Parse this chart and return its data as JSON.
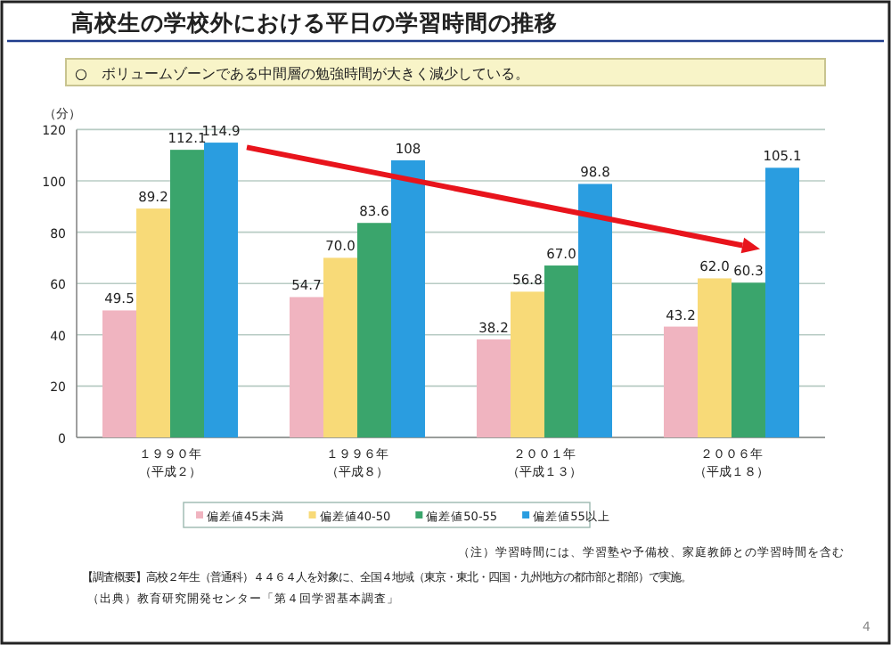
{
  "chart_data": {
    "type": "bar",
    "title": "高校生の学校外における平日の学習時間の推移",
    "subtitle": "○　ボリュームゾーンである中間層の勉強時間が大きく減少している。",
    "ylabel": "（分）",
    "categories": [
      "１９９０年（平成２）",
      "１９９６年（平成８）",
      "２００１年（平成１３）",
      "２００６年（平成１８）"
    ],
    "series": [
      {
        "name": "偏差値45未満",
        "color": "#f0b4c0",
        "values": [
          49.5,
          54.7,
          38.2,
          43.2
        ],
        "value_labels": [
          "49.5",
          "54.7",
          "38.2",
          "43.2"
        ]
      },
      {
        "name": "偏差値40-50",
        "color": "#f8da78",
        "values": [
          89.2,
          70.0,
          56.8,
          62.0
        ],
        "value_labels": [
          "89.2",
          "70.0",
          "56.8",
          "62.0"
        ]
      },
      {
        "name": "偏差値50-55",
        "color": "#3aa56c",
        "values": [
          112.1,
          83.6,
          67.0,
          60.3
        ],
        "value_labels": [
          "112.1",
          "83.6",
          "67.0",
          "60.3"
        ]
      },
      {
        "name": "偏差値55以上",
        "color": "#2a9de0",
        "values": [
          114.9,
          108,
          98.8,
          105.1
        ],
        "value_labels": [
          "114.9",
          "108",
          "98.8",
          "105.1"
        ]
      }
    ],
    "ylim": [
      0,
      120
    ],
    "yticks": [
      0,
      20,
      40,
      60,
      80,
      100,
      120
    ],
    "grid": "y",
    "legend": "bottom",
    "annotations": [
      "（注）学習時間には、学習塾や予備校、家庭教師との学習時間を含む",
      "【調査概要】高校２年生（普通科）４４６４人を対象に、全国４地域（東京・東北・四国・九州地方の都市部と郡部）で実施。",
      "（出典）教育研究開発センター「第４回学習基本調査」",
      "4"
    ]
  }
}
